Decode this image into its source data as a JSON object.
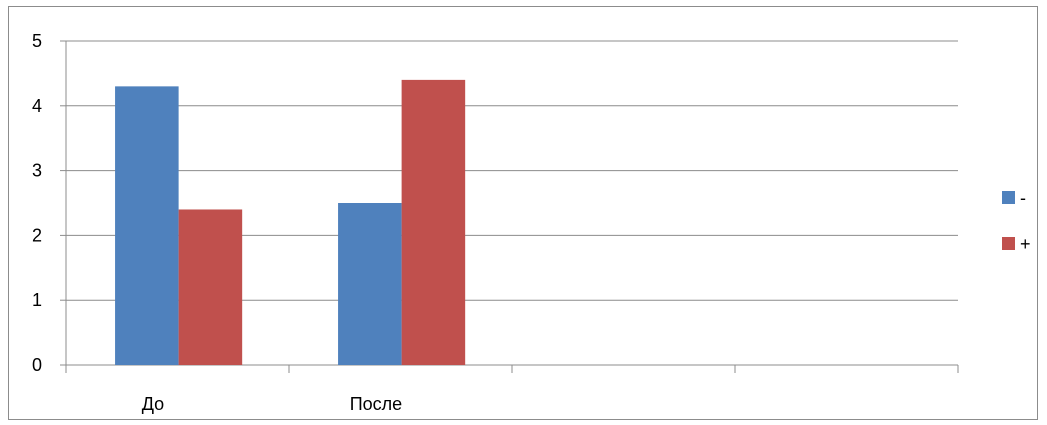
{
  "chart_data": {
    "type": "bar",
    "title": "",
    "xlabel": "",
    "ylabel": "",
    "categories": [
      "До",
      "После",
      "",
      ""
    ],
    "series": [
      {
        "name": "-",
        "color": "#4f81bd",
        "values": [
          4.3,
          2.5,
          null,
          null
        ]
      },
      {
        "name": "+",
        "color": "#c0504d",
        "values": [
          2.4,
          4.4,
          null,
          null
        ]
      }
    ],
    "ylim": [
      0,
      5
    ],
    "yticks": [
      "0",
      "1",
      "2",
      "3",
      "4",
      "5"
    ],
    "grid": true,
    "legend_position": "right"
  }
}
